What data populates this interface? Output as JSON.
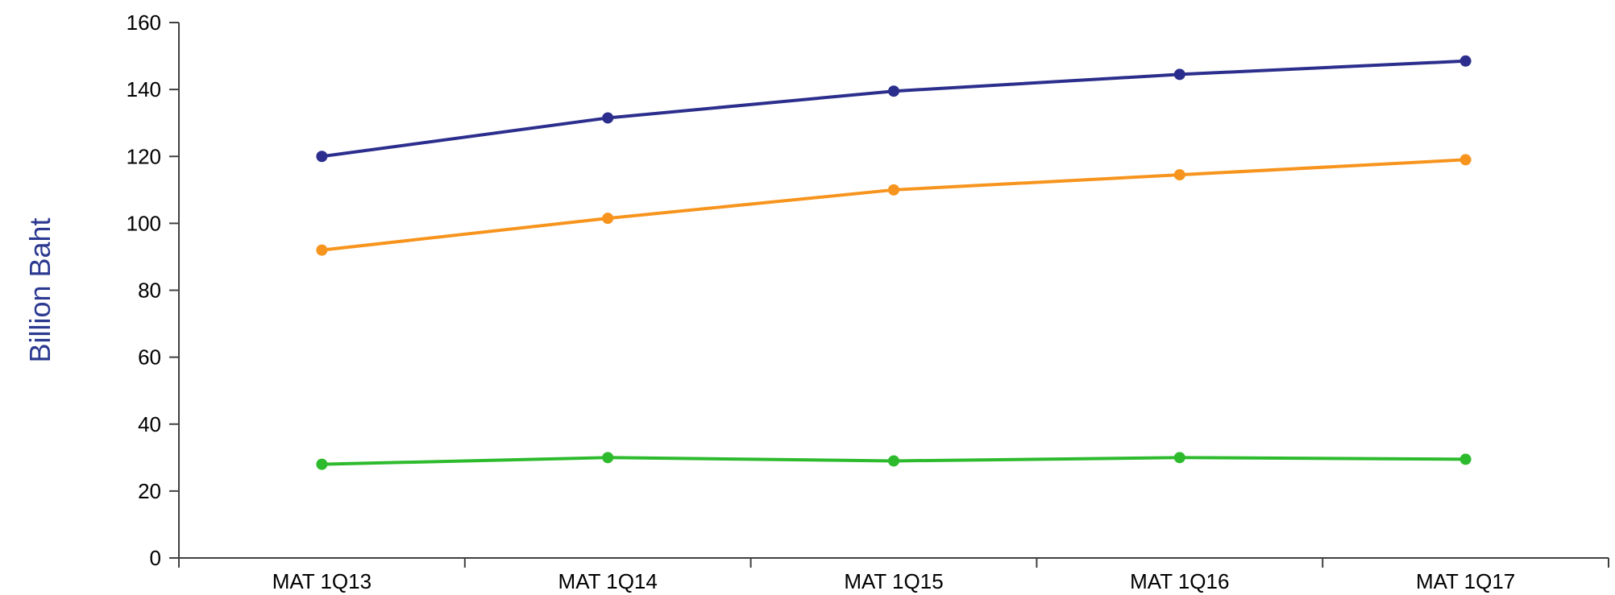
{
  "chart_data": {
    "type": "line",
    "categories": [
      "MAT 1Q13",
      "MAT 1Q14",
      "MAT 1Q15",
      "MAT 1Q16",
      "MAT 1Q17"
    ],
    "series": [
      {
        "color": "#2b2e8c",
        "values": [
          120,
          131.5,
          139.5,
          144.5,
          148.5
        ]
      },
      {
        "color": "#f7941d",
        "values": [
          92,
          101.5,
          110,
          114.5,
          119
        ]
      },
      {
        "color": "#2dbb2d",
        "values": [
          28,
          30,
          29,
          30,
          29.5
        ]
      }
    ],
    "ylabel": "Billion Baht",
    "ylabel_color": "#2b3990",
    "ylim": [
      0,
      160
    ],
    "yticks": [
      0,
      20,
      40,
      60,
      80,
      100,
      120,
      140,
      160
    ],
    "grid": false,
    "legend": "none"
  }
}
